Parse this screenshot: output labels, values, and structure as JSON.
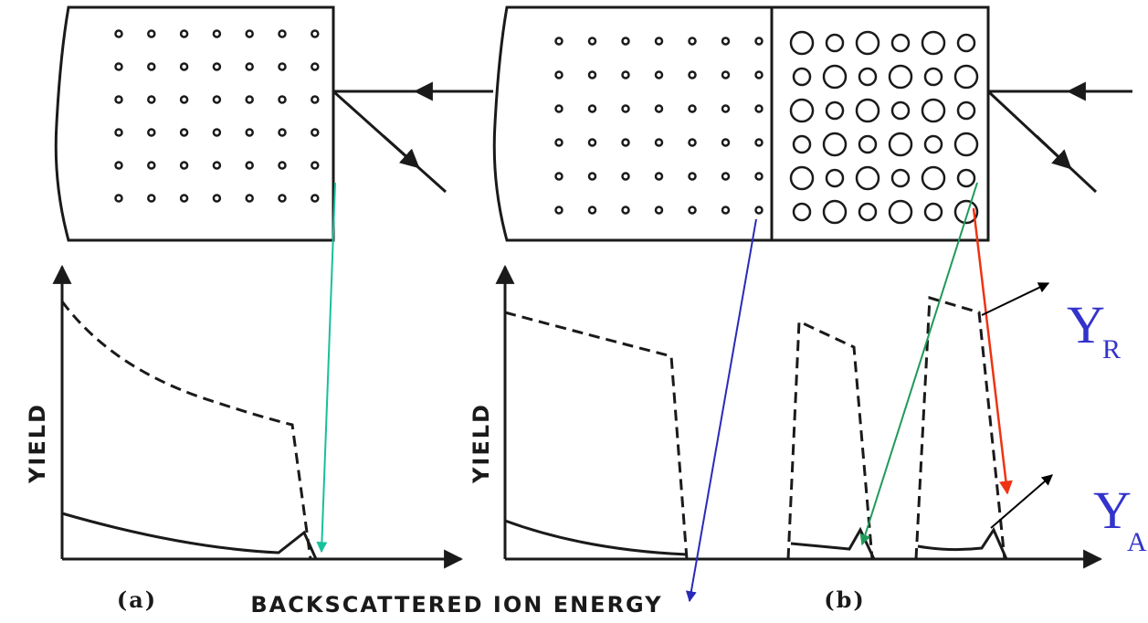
{
  "panels": [
    {
      "label": "(a)",
      "y_axis_label": "YIELD"
    },
    {
      "label": "(b)",
      "y_axis_label": "YIELD"
    }
  ],
  "x_axis_label": "BACKSCATTERED ION ENERGY",
  "annotations": [
    {
      "symbol": "Y",
      "subscript": "R"
    },
    {
      "symbol": "Y",
      "subscript": "A"
    }
  ]
}
